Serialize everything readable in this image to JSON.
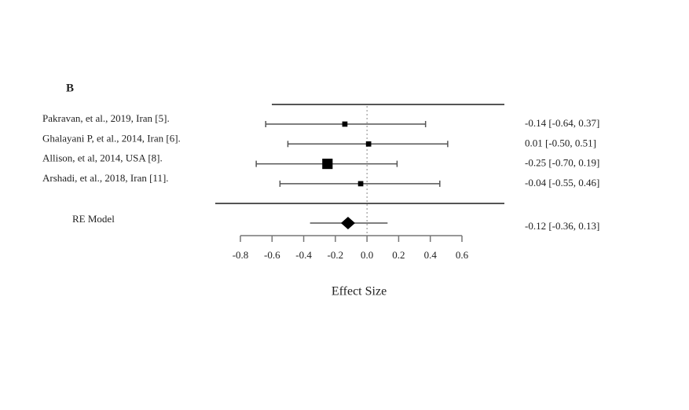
{
  "chart_data": {
    "type": "forest",
    "panel_label": "B",
    "studies": [
      "Pakravan, et al., 2019, Iran [5].",
      "Ghalayani P, et al., 2014, Iran [6].",
      "Allison, et al, 2014, USA [8].",
      "Arshadi, et al., 2018, Iran [11]."
    ],
    "values": [
      -0.14,
      0.01,
      -0.25,
      -0.04
    ],
    "lower": [
      -0.64,
      -0.5,
      -0.7,
      -0.55
    ],
    "upper": [
      0.37,
      0.51,
      0.19,
      0.46
    ],
    "value_labels": [
      "-0.14 [-0.64, 0.37]",
      "0.01 [-0.50, 0.51]",
      "-0.25 [-0.70, 0.19]",
      "-0.04 [-0.55, 0.46]"
    ],
    "summary": {
      "name": "RE Model",
      "value": -0.12,
      "lower": -0.36,
      "upper": 0.13,
      "value_label": "-0.12 [-0.36, 0.13]"
    },
    "xlabel": "Effect Size",
    "xlim": [
      -0.8,
      0.6
    ],
    "xticks": [
      -0.8,
      -0.6,
      -0.4,
      -0.2,
      {
        "value": 0,
        "label": "0.0"
      },
      0.2,
      0.4,
      0.6
    ]
  }
}
